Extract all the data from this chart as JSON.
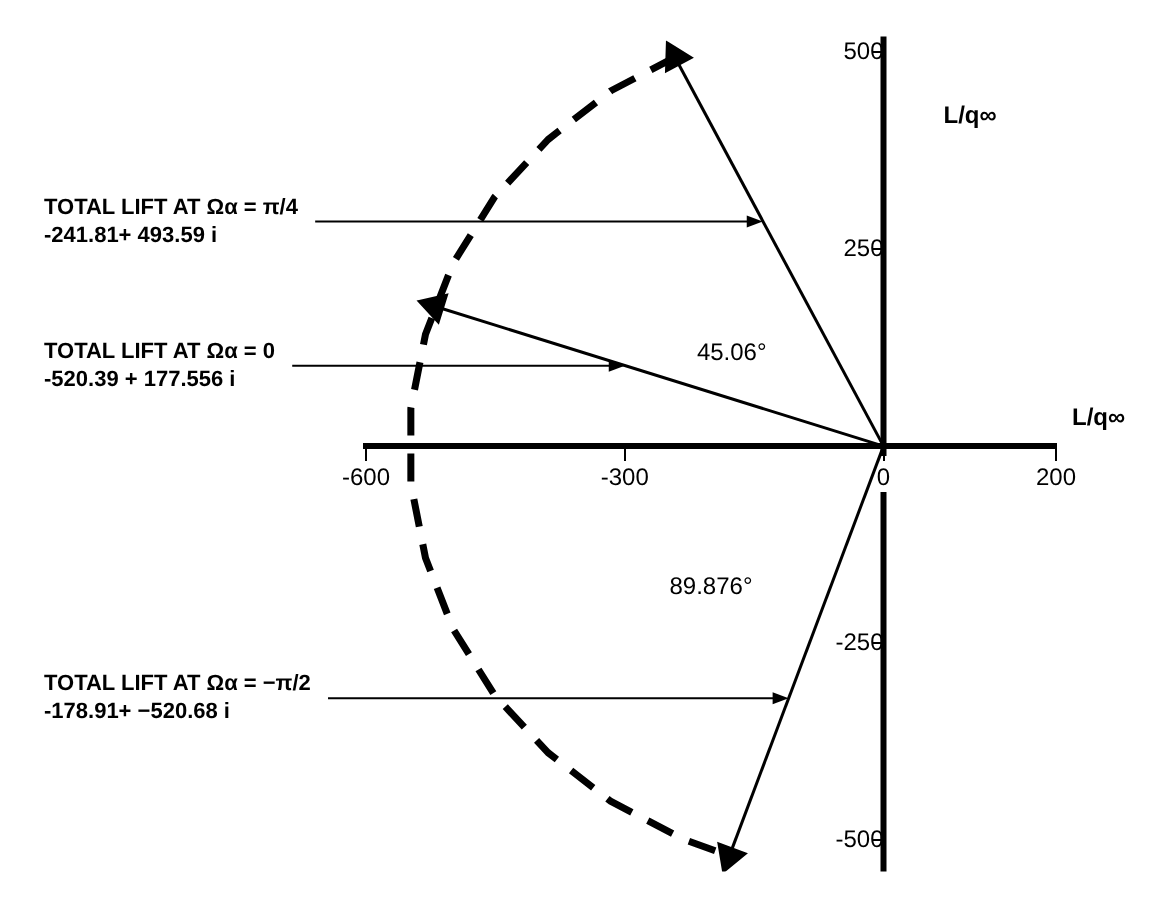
{
  "chart_data": {
    "type": "line",
    "xlabel": "L/q∞",
    "ylabel": "L/q∞",
    "xlim": [
      -600,
      200
    ],
    "xticks": [
      -600,
      -300,
      0,
      200
    ],
    "ylim": [
      -540,
      520
    ],
    "yticks": [
      -500,
      -250,
      250,
      500
    ],
    "grid": false,
    "legend": false,
    "series": [
      {
        "color": "#000000",
        "marker": "triangle",
        "line_style": "solid",
        "x": [
          0,
          -241.81
        ],
        "values": [
          0,
          493.59
        ]
      },
      {
        "color": "#000000",
        "marker": "triangle",
        "line_style": "solid",
        "x": [
          0,
          -520.39
        ],
        "values": [
          0,
          177.556
        ]
      },
      {
        "color": "#000000",
        "marker": "triangle",
        "line_style": "solid",
        "x": [
          0,
          -178.91
        ],
        "values": [
          0,
          -520.68
        ]
      },
      {
        "color": "#000000",
        "marker": "none",
        "line_style": "dashed",
        "x": [
          -241,
          -316,
          -389,
          -451,
          -499,
          -531,
          -548,
          -548,
          -531,
          -499,
          -451,
          -389,
          -316,
          -232,
          -179
        ],
        "values": [
          494,
          451,
          389,
          316,
          232,
          142,
          48,
          -48,
          -142,
          -232,
          -316,
          -389,
          -451,
          -499,
          -520
        ]
      }
    ],
    "annotations": [
      {
        "text": "TOTAL LIFT AT Ωα = π/4\n-241.81+ 493.59 i",
        "x": -140,
        "y": 285
      },
      {
        "text": "TOTAL LIFT AT Ωα = 0\n-520.39 + 177.556 i",
        "x": -300,
        "y": 102
      },
      {
        "text": "TOTAL LIFT AT Ωα = −π/2\n-178.91+ −520.68 i",
        "x": -110,
        "y": -320
      },
      "45.06°",
      "89.876°"
    ]
  }
}
